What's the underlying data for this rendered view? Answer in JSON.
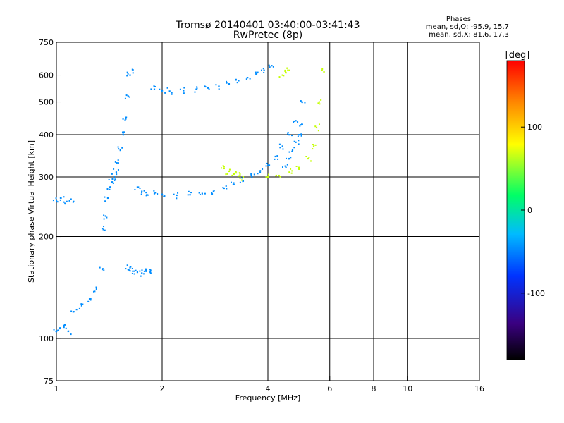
{
  "chart_data": {
    "type": "scatter",
    "title": "Tromsø 20140401 03:40:00-03:41:43",
    "subtitle": "RwPretec (8p)",
    "xlabel": "Frequency [MHz]",
    "ylabel": "Stationary phase Virtual Height [km]",
    "x_scale": "log",
    "y_scale": "log",
    "xlim": [
      1,
      16
    ],
    "ylim": [
      75,
      750
    ],
    "x_ticks": [
      1,
      2,
      4,
      6,
      8,
      10,
      16
    ],
    "y_ticks": [
      75,
      100,
      200,
      300,
      400,
      500,
      600,
      750
    ],
    "x_grid": [
      2,
      4,
      6,
      8,
      10
    ],
    "y_grid": [
      100,
      200,
      300,
      400,
      500,
      600
    ],
    "grid": true,
    "stats": {
      "header": "Phases",
      "line_o": "mean, sd,O: -95.9, 15.7",
      "line_x": "mean, sd,X:  81.6, 17.3"
    },
    "colorbar": {
      "label": "[deg]",
      "min": -180,
      "max": 180,
      "ticks": [
        100,
        0,
        -100
      ]
    },
    "series": [
      {
        "name": "O",
        "phase_mean": -95.9,
        "segments": [
          {
            "x": [
              1.0,
              1.02,
              1.05,
              1.08,
              1.12,
              1.18,
              1.25,
              1.3,
              1.35
            ],
            "y": [
              105,
              107,
              108,
              105,
              120,
              125,
              130,
              140,
              160
            ]
          },
          {
            "x": [
              1.0,
              1.03,
              1.06,
              1.1
            ],
            "y": [
              255,
              260,
              250,
              258
            ]
          },
          {
            "x": [
              1.36,
              1.38,
              1.4,
              1.42,
              1.44,
              1.46,
              1.48,
              1.5,
              1.52,
              1.55,
              1.58,
              1.6,
              1.62,
              1.65,
              1.7,
              1.75,
              1.8,
              1.9,
              2.0,
              2.2,
              2.4,
              2.6,
              2.8,
              3.0,
              3.2,
              3.4,
              3.6,
              3.8,
              4.0,
              4.2,
              4.4,
              4.6,
              4.8,
              5.0
            ],
            "y": [
              210,
              230,
              260,
              280,
              290,
              300,
              310,
              330,
              360,
              400,
              450,
              520,
              600,
              620,
              280,
              272,
              270,
              268,
              266,
              265,
              266,
              268,
              272,
              278,
              285,
              292,
              300,
              310,
              325,
              345,
              370,
              400,
              440,
              500
            ]
          },
          {
            "x": [
              1.6,
              1.62,
              1.65,
              1.7,
              1.75,
              1.8,
              1.85
            ],
            "y": [
              160,
              162,
              158,
              157,
              156,
              158,
              157
            ]
          },
          {
            "x": [
              1.9,
              2.0,
              2.1,
              2.3,
              2.5,
              2.7,
              2.9,
              3.1,
              3.3,
              3.5,
              3.7,
              3.9,
              4.1
            ],
            "y": [
              545,
              540,
              538,
              540,
              545,
              550,
              556,
              565,
              578,
              590,
              605,
              620,
              640
            ]
          },
          {
            "x": [
              4.5,
              4.6,
              4.7,
              4.8,
              4.9,
              5.0
            ],
            "y": [
              320,
              340,
              360,
              380,
              400,
              430
            ]
          }
        ]
      },
      {
        "name": "X",
        "phase_mean": 81.6,
        "segments": [
          {
            "x": [
              3.0,
              3.1,
              3.2,
              3.3,
              3.4
            ],
            "y": [
              318,
              312,
              306,
              302,
              300
            ]
          },
          {
            "x": [
              4.0,
              4.3,
              4.6,
              4.9,
              5.2,
              5.4,
              5.5,
              5.6,
              5.7
            ],
            "y": [
              300,
              303,
              310,
              320,
              340,
              370,
              420,
              500,
              620
            ]
          },
          {
            "x": [
              4.4,
              4.5,
              4.6
            ],
            "y": [
              600,
              610,
              620
            ]
          }
        ]
      }
    ]
  }
}
